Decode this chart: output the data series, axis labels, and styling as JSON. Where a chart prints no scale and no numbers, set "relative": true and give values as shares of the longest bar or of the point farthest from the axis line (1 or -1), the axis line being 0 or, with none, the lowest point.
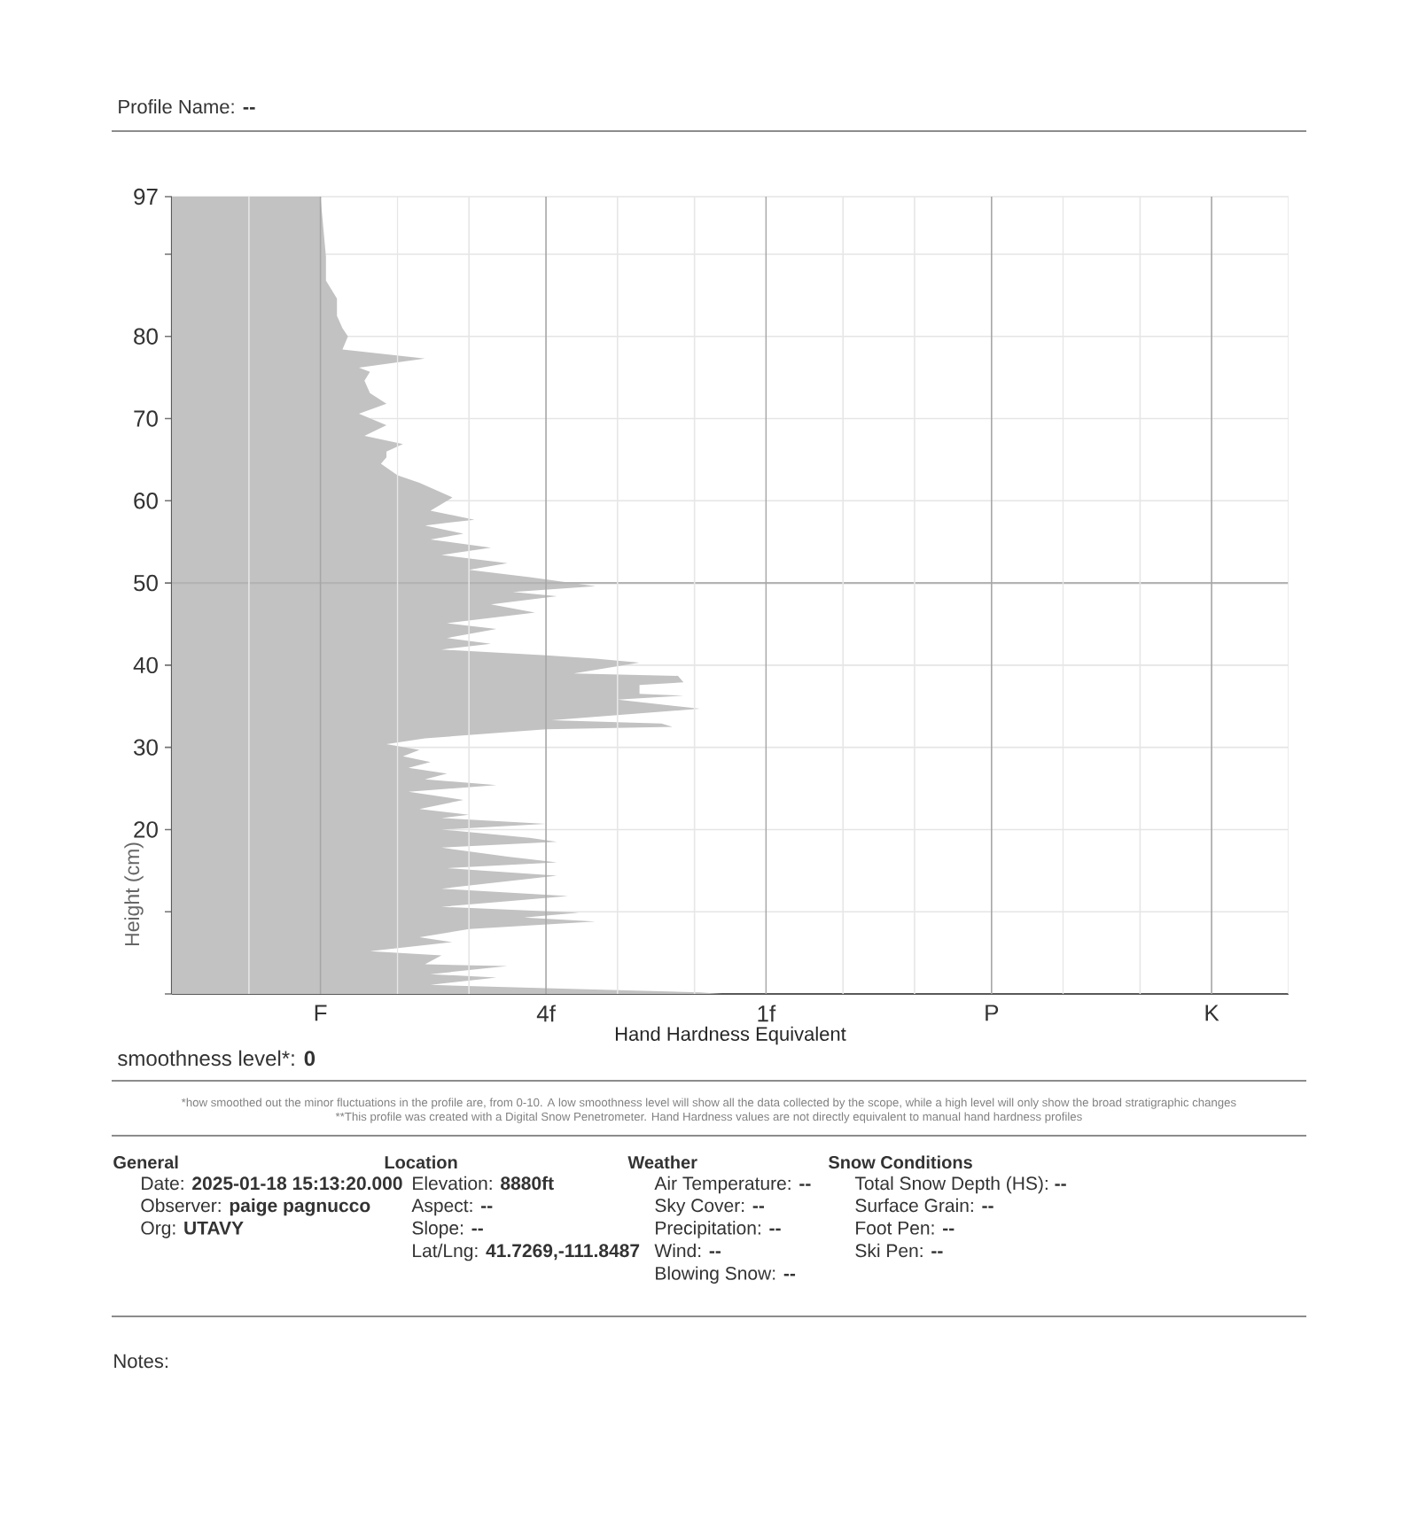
{
  "chart_data": {
    "type": "area",
    "orientation": "horizontal",
    "relative": true,
    "title": "Profile Name: **--**",
    "xlabel": "Hand Hardness Equivalent",
    "ylabel": "Height (cm)",
    "x": [
      97,
      89.7,
      86.8,
      84.6,
      83.9,
      82.5,
      81,
      80,
      78.4,
      77.3,
      76.2,
      75.7,
      74.6,
      73.1,
      71.8,
      70.6,
      69.2,
      67.9,
      66.9,
      66,
      65.3,
      64.5,
      63.1,
      62.2,
      61.6,
      60.4,
      58.8,
      57.7,
      57,
      56,
      55.3,
      54.3,
      53.4,
      52.4,
      51.6,
      50.7,
      49.6,
      48.9,
      48.4,
      47.4,
      46.4,
      45.1,
      44.4,
      43.3,
      42.6,
      41.9,
      41.2,
      40.8,
      40.3,
      39,
      38.7,
      37.9,
      37.6,
      36.5,
      36.3,
      35.8,
      34.7,
      33.3,
      32.9,
      32.5,
      32.2,
      31.1,
      30.4,
      29.7,
      28.9,
      28.2,
      27.5,
      26.8,
      26.1,
      25.4,
      24.6,
      23.6,
      22.5,
      21.8,
      21.4,
      20.7,
      20,
      19,
      18.5,
      17.8,
      16.7,
      16,
      15.3,
      14.4,
      12.8,
      11.9,
      10.6,
      9.9,
      9.3,
      8.8,
      7.9,
      6.9,
      6.3,
      5.2,
      4.7,
      3.6,
      3.4,
      2.4,
      2,
      1.1,
      0.7,
      0.2,
      0
    ],
    "values": [
      0.27,
      0.28,
      0.28,
      0.3,
      0.3,
      0.3,
      0.31,
      0.32,
      0.31,
      0.46,
      0.34,
      0.36,
      0.35,
      0.36,
      0.39,
      0.34,
      0.39,
      0.35,
      0.42,
      0.39,
      0.39,
      0.38,
      0.41,
      0.45,
      0.47,
      0.51,
      0.47,
      0.55,
      0.46,
      0.53,
      0.47,
      0.58,
      0.49,
      0.61,
      0.54,
      0.65,
      0.77,
      0.62,
      0.7,
      0.58,
      0.66,
      0.5,
      0.59,
      0.5,
      0.58,
      0.49,
      0.68,
      0.77,
      0.85,
      0.73,
      0.92,
      0.93,
      0.85,
      0.85,
      0.93,
      0.81,
      0.96,
      0.69,
      0.89,
      0.91,
      0.68,
      0.46,
      0.39,
      0.45,
      0.42,
      0.47,
      0.43,
      0.5,
      0.46,
      0.59,
      0.43,
      0.53,
      0.45,
      0.54,
      0.49,
      0.68,
      0.49,
      0.65,
      0.7,
      0.49,
      0.61,
      0.7,
      0.5,
      0.7,
      0.49,
      0.72,
      0.49,
      0.74,
      0.64,
      0.77,
      0.54,
      0.45,
      0.51,
      0.36,
      0.49,
      0.46,
      0.61,
      0.47,
      0.59,
      0.47,
      0.68,
      0.96,
      1
    ],
    "color": "#c2c2c2",
    "ylim": [
      0,
      97
    ],
    "yticks": [
      {
        "value": 0,
        "label": null
      },
      {
        "value": 10,
        "label": null
      },
      20,
      30,
      40,
      50,
      60,
      70,
      80,
      {
        "value": 90,
        "label": null
      },
      97
    ],
    "grid": "y",
    "ref_lines": [
      {
        "axis": "y",
        "value": 50,
        "color": "#b3b3b3"
      },
      {
        "axis": "x",
        "value": 0.14,
        "color": "#e6e6e6"
      },
      {
        "axis": "x",
        "value": 0.27,
        "color": "#a6a6a6",
        "label": "F"
      },
      {
        "axis": "x",
        "value": 0.41,
        "color": "#e6e6e6"
      },
      {
        "axis": "x",
        "value": 0.54,
        "color": "#e6e6e6"
      },
      {
        "axis": "x",
        "value": 0.68,
        "color": "#a6a6a6",
        "label": "4f"
      },
      {
        "axis": "x",
        "value": 0.81,
        "color": "#e6e6e6"
      },
      {
        "axis": "x",
        "value": 0.95,
        "color": "#e6e6e6"
      },
      {
        "axis": "x",
        "value": 1.08,
        "color": "#a6a6a6",
        "label": "1f"
      },
      {
        "axis": "x",
        "value": 1.22,
        "color": "#e6e6e6"
      },
      {
        "axis": "x",
        "value": 1.35,
        "color": "#e6e6e6"
      },
      {
        "axis": "x",
        "value": 1.49,
        "color": "#a6a6a6",
        "label": "P"
      },
      {
        "axis": "x",
        "value": 1.62,
        "color": "#e6e6e6"
      },
      {
        "axis": "x",
        "value": 1.76,
        "color": "#e6e6e6"
      },
      {
        "axis": "x",
        "value": 1.89,
        "color": "#a6a6a6",
        "label": "K"
      },
      {
        "axis": "x",
        "value": 2.03,
        "color": "#e6e6e6"
      }
    ],
    "annotations": [
      "smoothness level*: **0**",
      "*how smoothed out the minor fluctuations in the profile are, from 0-10.  A low smoothness level will show all the data collected by the scope, while a high level will only show the broad stratigraphic changes",
      "**This profile was created with a Digital Snow Penetrometer.  Hand Hardness values are not directly equivalent to manual hand hardness profiles",
      "General",
      "Date: **2025-01-18 15:13:20.000**",
      "Observer: **paige pagnucco**",
      "Org: **UTAVY**",
      "Location",
      "Elevation: **8880ft**",
      "Aspect: **--**",
      "Slope: **--**",
      "Lat/Lng: **41.7269,-111.8487**",
      "Weather",
      "Air Temperature: **--**",
      "Sky Cover: **--**",
      "Precipitation: **--**",
      "Wind: **--**",
      "Blowing Snow: **--**",
      "Snow Conditions",
      "Total Snow Depth (HS): **--**",
      "Surface Grain: **--**",
      "Foot Pen: **--**",
      "Ski Pen: **--**",
      "Notes:"
    ]
  }
}
